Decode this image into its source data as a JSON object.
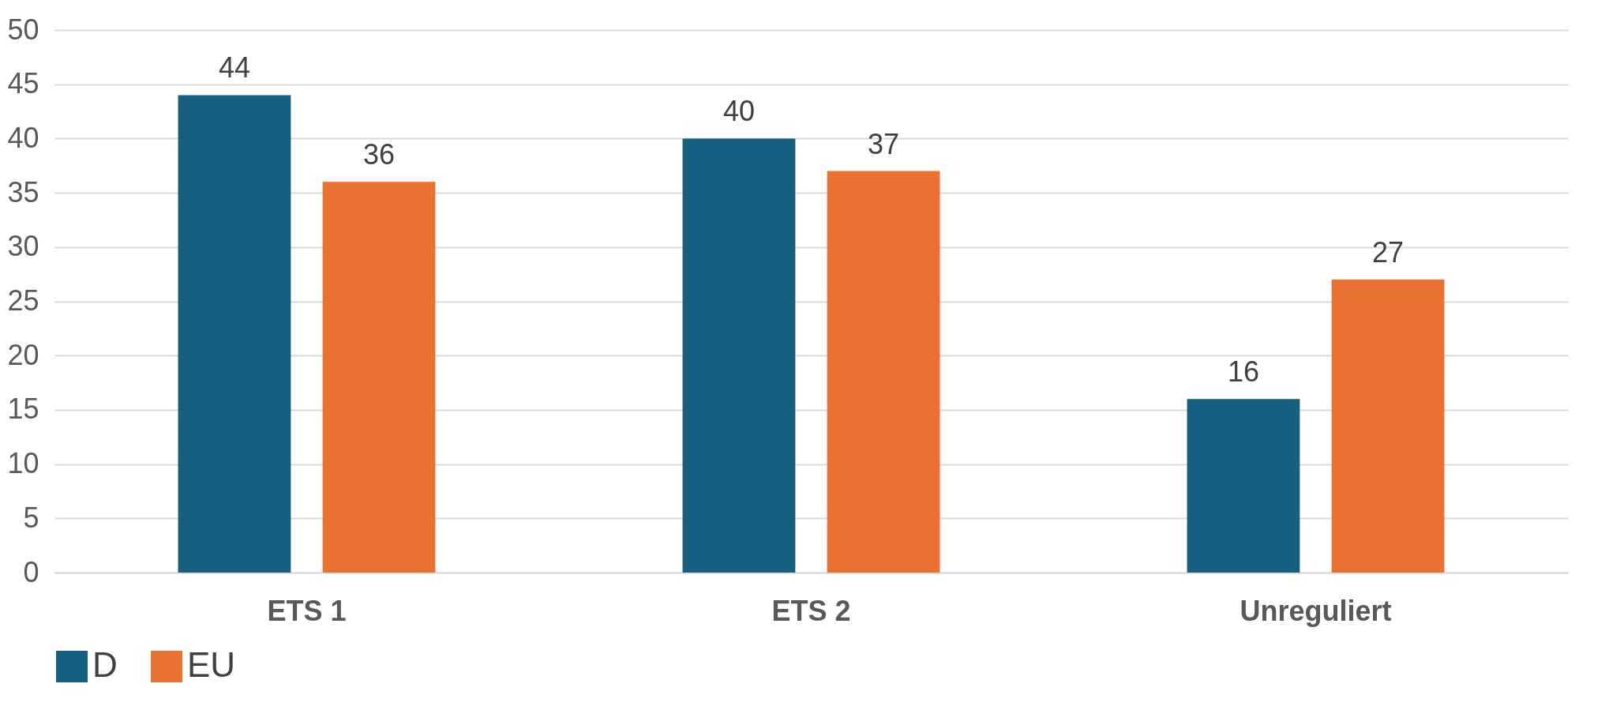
{
  "chart_data": {
    "type": "bar",
    "categories": [
      "ETS 1",
      "ETS 2",
      "Unreguliert"
    ],
    "series": [
      {
        "name": "D",
        "color": "#175f80",
        "values": [
          44,
          40,
          16
        ]
      },
      {
        "name": "EU",
        "color": "#e97132",
        "values": [
          36,
          37,
          27
        ]
      }
    ],
    "ylim": [
      0,
      50
    ],
    "yticks": [
      0,
      5,
      10,
      15,
      20,
      25,
      30,
      35,
      40,
      45,
      50
    ],
    "grid": "y",
    "legend": "bottom",
    "data_labels": true
  }
}
